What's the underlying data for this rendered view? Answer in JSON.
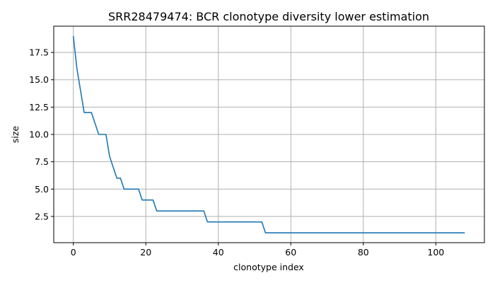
{
  "chart_data": {
    "type": "line",
    "title": "SRR28479474: BCR clonotype diversity lower estimation",
    "xlabel": "clonotype index",
    "ylabel": "size",
    "xlim": [
      -5.4,
      113.4
    ],
    "ylim": [
      0.1,
      19.9
    ],
    "xticks": [
      0,
      20,
      40,
      60,
      80,
      100
    ],
    "yticks": [
      2.5,
      5.0,
      7.5,
      10.0,
      12.5,
      15.0,
      17.5
    ],
    "grid": true,
    "legend": "none",
    "series": [
      {
        "color": "#1f77b4",
        "x": [
          0,
          1,
          2,
          3,
          4,
          5,
          6,
          7,
          8,
          9,
          10,
          11,
          12,
          13,
          14,
          15,
          16,
          17,
          18,
          19,
          20,
          21,
          22,
          23,
          24,
          25,
          26,
          27,
          28,
          29,
          30,
          31,
          32,
          33,
          34,
          35,
          36,
          37,
          38,
          39,
          40,
          41,
          42,
          43,
          44,
          45,
          46,
          47,
          48,
          49,
          50,
          51,
          52,
          53,
          54,
          55,
          56,
          57,
          58,
          59,
          60,
          61,
          62,
          63,
          64,
          65,
          66,
          67,
          68,
          69,
          70,
          71,
          72,
          73,
          74,
          75,
          76,
          77,
          78,
          79,
          80,
          81,
          82,
          83,
          84,
          85,
          86,
          87,
          88,
          89,
          90,
          91,
          92,
          93,
          94,
          95,
          96,
          97,
          98,
          99,
          100,
          101,
          102,
          103,
          104,
          105,
          106,
          107,
          108
        ],
        "y": [
          19,
          16,
          14,
          12,
          12,
          12,
          11,
          10,
          10,
          10,
          8,
          7,
          6,
          6,
          5,
          5,
          5,
          5,
          5,
          4,
          4,
          4,
          4,
          3,
          3,
          3,
          3,
          3,
          3,
          3,
          3,
          3,
          3,
          3,
          3,
          3,
          3,
          2,
          2,
          2,
          2,
          2,
          2,
          2,
          2,
          2,
          2,
          2,
          2,
          2,
          2,
          2,
          2,
          1,
          1,
          1,
          1,
          1,
          1,
          1,
          1,
          1,
          1,
          1,
          1,
          1,
          1,
          1,
          1,
          1,
          1,
          1,
          1,
          1,
          1,
          1,
          1,
          1,
          1,
          1,
          1,
          1,
          1,
          1,
          1,
          1,
          1,
          1,
          1,
          1,
          1,
          1,
          1,
          1,
          1,
          1,
          1,
          1,
          1,
          1,
          1,
          1,
          1,
          1,
          1,
          1,
          1,
          1,
          1
        ]
      }
    ]
  }
}
